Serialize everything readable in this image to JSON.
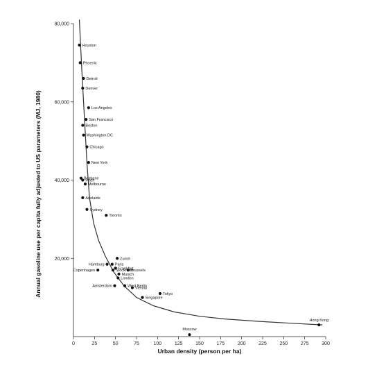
{
  "chart_data": {
    "type": "scatter",
    "title": "",
    "xlabel": "Urban density (person per ha)",
    "ylabel": "Annual gasoline use per capita fully adjusted to US parameters (MJ, 1980)",
    "xlim": [
      0,
      300
    ],
    "ylim": [
      0,
      80000
    ],
    "x_ticks": [
      0,
      25,
      50,
      75,
      100,
      125,
      150,
      175,
      200,
      225,
      250,
      275,
      300
    ],
    "y_ticks": [
      20000,
      40000,
      60000,
      80000
    ],
    "y_tick_labels": [
      "20,000",
      "40,000",
      "60,000",
      "80,000"
    ],
    "grid": false,
    "legend": "none",
    "trend_line": "fitted curve",
    "points": [
      {
        "label": "Houston",
        "x": 7,
        "y": 74500
      },
      {
        "label": "Phoenix",
        "x": 8,
        "y": 70000
      },
      {
        "label": "Detroit",
        "x": 12,
        "y": 66000
      },
      {
        "label": "Denver",
        "x": 11,
        "y": 63500
      },
      {
        "label": "Los Angeles",
        "x": 18,
        "y": 58500
      },
      {
        "label": "San Francisco",
        "x": 15,
        "y": 55500
      },
      {
        "label": "Boston",
        "x": 11,
        "y": 54000
      },
      {
        "label": "Washington DC",
        "x": 12,
        "y": 51500
      },
      {
        "label": "Chicago",
        "x": 16,
        "y": 48500
      },
      {
        "label": "New York",
        "x": 18,
        "y": 44500
      },
      {
        "label": "Brisbane",
        "x": 9,
        "y": 40500
      },
      {
        "label": "Perth",
        "x": 11,
        "y": 40000
      },
      {
        "label": "Melbourne",
        "x": 14,
        "y": 39000
      },
      {
        "label": "Adelaide",
        "x": 11,
        "y": 35500
      },
      {
        "label": "Sydney",
        "x": 16,
        "y": 32500
      },
      {
        "label": "Toronto",
        "x": 39,
        "y": 31000
      },
      {
        "label": "Zurich",
        "x": 52,
        "y": 20000
      },
      {
        "label": "Hamburg",
        "x": 40,
        "y": 18500
      },
      {
        "label": "Paris",
        "x": 46,
        "y": 18500
      },
      {
        "label": "Frankfurt",
        "x": 50,
        "y": 17500
      },
      {
        "label": "Copenhagen",
        "x": 29,
        "y": 17000
      },
      {
        "label": "Stockholm",
        "x": 47,
        "y": 17000
      },
      {
        "label": "Brussels",
        "x": 65,
        "y": 17000
      },
      {
        "label": "Munich",
        "x": 54,
        "y": 16000
      },
      {
        "label": "London",
        "x": 53,
        "y": 15000
      },
      {
        "label": "West Berlin",
        "x": 61,
        "y": 13000
      },
      {
        "label": "Amsterdam",
        "x": 49,
        "y": 13000
      },
      {
        "label": "Vienna",
        "x": 70,
        "y": 12500
      },
      {
        "label": "Tokyo",
        "x": 103,
        "y": 11000
      },
      {
        "label": "Singapore",
        "x": 82,
        "y": 10000
      },
      {
        "label": "Hong Kong",
        "x": 292,
        "y": 3000
      },
      {
        "label": "Moscow",
        "x": 138,
        "y": 500
      }
    ]
  }
}
